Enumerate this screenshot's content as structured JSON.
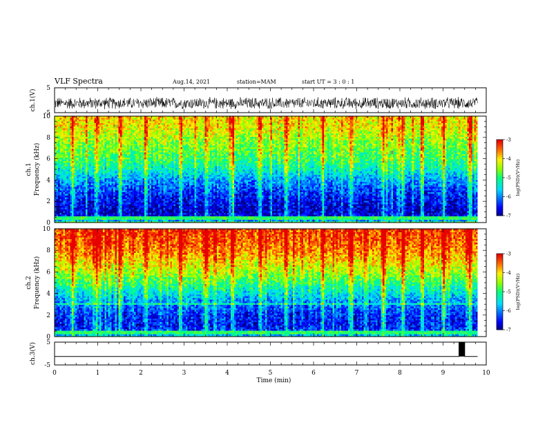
{
  "header": {
    "title": "VLF Spectra",
    "date": "Aug.14, 2021",
    "station": "station=MAM",
    "start": "start UT =  3 : 0 : 1"
  },
  "colors": {
    "palette": [
      "#00007f",
      "#0000ff",
      "#0080ff",
      "#00ffff",
      "#00ff80",
      "#7fff00",
      "#ffff00",
      "#ff8000",
      "#ff0000",
      "#7f0000",
      "#ffffff"
    ],
    "trace": "#000000"
  },
  "chart_data": [
    {
      "id": "ch1-waveform",
      "type": "line",
      "ylabel": "ch.1(V)",
      "ylim": [
        -5,
        5
      ],
      "yticks": [
        "5",
        "-5"
      ],
      "xlim": [
        0,
        10
      ],
      "description_values": "noise trace roughly between -4 and 2 V over 0 to 9.8 min"
    },
    {
      "id": "ch1-spectrogram",
      "type": "heatmap",
      "ylabel": "ch.1\nFrequency (kHz)",
      "ylim": [
        0,
        10
      ],
      "yticks": [
        "0",
        "2",
        "4",
        "6",
        "8",
        "10"
      ],
      "xlim": [
        0,
        10
      ],
      "data_end_min": 9.8,
      "colorbar": {
        "label": "log(PSD)(V²/Hz)",
        "ticks": [
          "-3",
          "-4",
          "-5",
          "-6",
          "-7"
        ],
        "range": [
          -7,
          -3
        ]
      },
      "profile": {
        "freq_khz": [
          0,
          0.5,
          1,
          2,
          3,
          4,
          5,
          6,
          7,
          8,
          9,
          10
        ],
        "log_psd": [
          -5.5,
          -6.5,
          -6.8,
          -6.6,
          -6.3,
          -5.9,
          -5.3,
          -4.9,
          -4.7,
          -4.4,
          -4.1,
          -4.0
        ]
      },
      "impulse_times_min": [
        0.4,
        0.95,
        1.5,
        2.1,
        2.9,
        3.5,
        4.1,
        4.75,
        5.35,
        6.2,
        6.85,
        7.6,
        8.05,
        8.5,
        9.0,
        9.6
      ]
    },
    {
      "id": "ch2-spectrogram",
      "type": "heatmap",
      "ylabel": "ch.2\nFrequency (kHz)",
      "ylim": [
        0,
        10
      ],
      "yticks": [
        "0",
        "2",
        "4",
        "6",
        "8",
        "10"
      ],
      "xlim": [
        0,
        10
      ],
      "data_end_min": 9.8,
      "colorbar": {
        "label": "log(PSD)(V²/Hz)",
        "ticks": [
          "-3",
          "-4",
          "-5",
          "-6",
          "-7"
        ],
        "range": [
          -7,
          -3
        ]
      },
      "profile": {
        "freq_khz": [
          0,
          0.5,
          1,
          2,
          3,
          4,
          5,
          6,
          7,
          8,
          9,
          10
        ],
        "log_psd": [
          -5.5,
          -6.3,
          -6.5,
          -6.4,
          -6.0,
          -5.5,
          -4.9,
          -4.4,
          -4.0,
          -3.6,
          -3.4,
          -3.3
        ]
      },
      "impulse_times_min": [
        0.4,
        0.95,
        1.5,
        2.1,
        2.9,
        3.5,
        4.1,
        4.75,
        5.35,
        6.2,
        6.85,
        7.6,
        8.05,
        8.5,
        9.0,
        9.6
      ]
    },
    {
      "id": "ch3-waveform",
      "type": "line",
      "ylabel": "ch.3(V)",
      "ylim": [
        -5,
        5
      ],
      "yticks": [
        "5",
        "-5"
      ],
      "xlim": [
        0,
        10
      ],
      "xlabel": "Time (min)",
      "xticks": [
        "0",
        "1",
        "2",
        "3",
        "4",
        "5",
        "6",
        "7",
        "8",
        "9",
        "10"
      ],
      "x": [
        0,
        9.37,
        9.37,
        9.5,
        9.5,
        9.8
      ],
      "y": [
        -1.3,
        -1.3,
        5,
        5,
        -1.3,
        -1.3
      ]
    }
  ]
}
